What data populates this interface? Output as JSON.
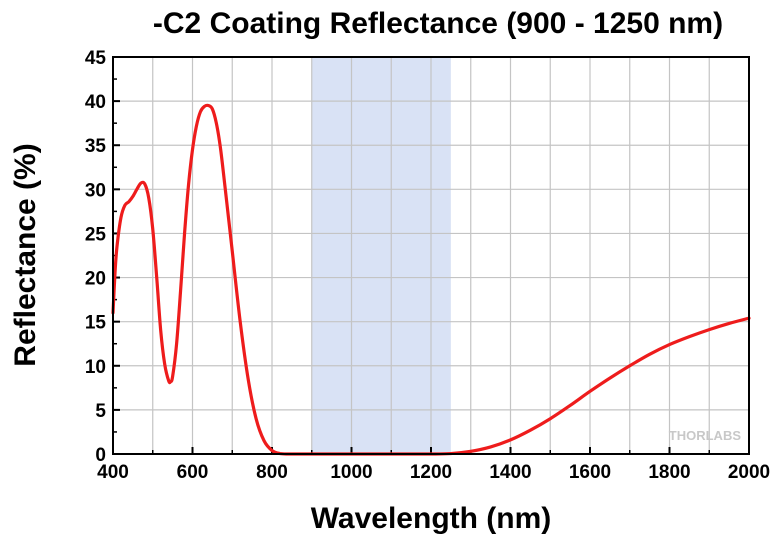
{
  "chart_data": {
    "type": "line",
    "title": "-C2 Coating Reflectance (900 - 1250 nm)",
    "xlabel": "Wavelength (nm)",
    "ylabel": "Reflectance (%)",
    "xlim": [
      400,
      2000
    ],
    "ylim": [
      0,
      45
    ],
    "xticks": [
      400,
      600,
      800,
      1000,
      1200,
      1400,
      1600,
      1800,
      2000
    ],
    "yticks": [
      0,
      5,
      10,
      15,
      20,
      25,
      30,
      35,
      40,
      45
    ],
    "grid": true,
    "highlight_band": {
      "x_range": [
        900,
        1250
      ],
      "color": "#d9e2f5"
    },
    "line_color": "#ee1c1c",
    "watermark": "THORLABS",
    "series": [
      {
        "x": [
          400,
          405,
          410,
          420,
          430,
          440,
          450,
          460,
          470,
          480,
          490,
          500,
          510,
          520,
          530,
          540,
          545,
          550,
          560,
          570,
          580,
          590,
          600,
          610,
          620,
          630,
          640,
          650,
          660,
          670,
          680,
          690,
          700,
          720,
          740,
          760,
          780,
          800,
          820,
          840,
          860,
          880,
          900,
          950,
          1000,
          1100,
          1200,
          1250,
          1300,
          1350,
          1400,
          1450,
          1500,
          1550,
          1600,
          1650,
          1700,
          1750,
          1800,
          1850,
          1900,
          1950,
          2000
        ],
        "y": [
          16.0,
          20.5,
          23.5,
          26.8,
          28.2,
          28.6,
          29.2,
          30.0,
          30.7,
          30.6,
          29.0,
          25.5,
          20.0,
          14.0,
          10.2,
          8.3,
          8.2,
          8.8,
          12.5,
          18.5,
          25.0,
          30.5,
          34.5,
          37.2,
          38.8,
          39.4,
          39.5,
          39.1,
          37.5,
          34.8,
          31.0,
          27.0,
          23.0,
          15.0,
          8.5,
          4.0,
          1.5,
          0.4,
          0.05,
          0.0,
          0.0,
          0.0,
          0.0,
          0.0,
          0.0,
          0.0,
          0.0,
          0.05,
          0.3,
          0.8,
          1.6,
          2.7,
          4.0,
          5.5,
          7.1,
          8.6,
          10.0,
          11.3,
          12.4,
          13.3,
          14.1,
          14.8,
          15.4
        ]
      }
    ]
  }
}
